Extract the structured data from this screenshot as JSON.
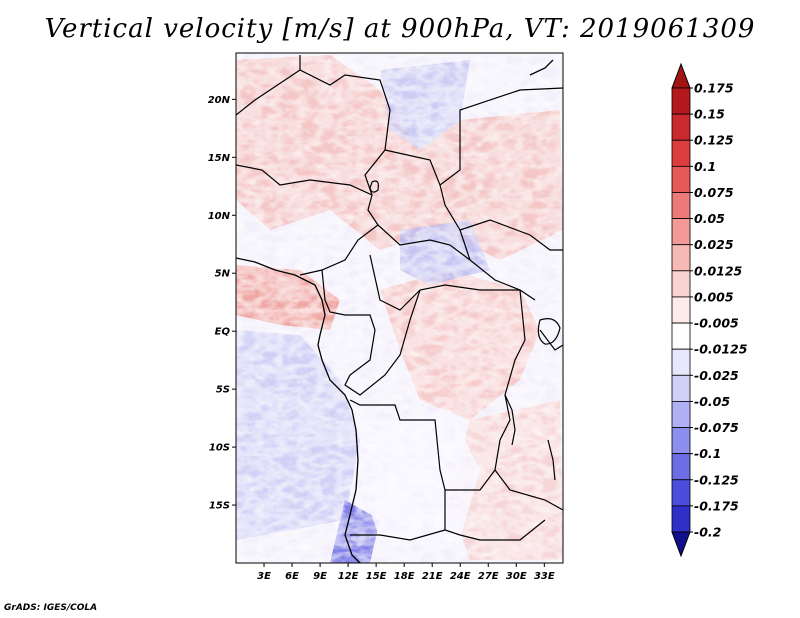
{
  "title": "Vertical velocity [m/s] at 900hPa, VT: 2019061309",
  "credit": "GrADS: IGES/COLA",
  "map": {
    "variable": "Vertical velocity",
    "units": "m/s",
    "level": "900hPa",
    "valid_time": "2019061309",
    "lon_range": [
      0,
      35
    ],
    "lat_range": [
      -20,
      24
    ],
    "lat_ticks": [
      {
        "value": 20,
        "label": "20N"
      },
      {
        "value": 15,
        "label": "15N"
      },
      {
        "value": 10,
        "label": "10N"
      },
      {
        "value": 5,
        "label": "5N"
      },
      {
        "value": 0,
        "label": "EQ"
      },
      {
        "value": -5,
        "label": "5S"
      },
      {
        "value": -10,
        "label": "10S"
      },
      {
        "value": -15,
        "label": "15S"
      }
    ],
    "lon_ticks": [
      {
        "value": 3,
        "label": "3E"
      },
      {
        "value": 6,
        "label": "6E"
      },
      {
        "value": 9,
        "label": "9E"
      },
      {
        "value": 12,
        "label": "12E"
      },
      {
        "value": 15,
        "label": "15E"
      },
      {
        "value": 18,
        "label": "18E"
      },
      {
        "value": 21,
        "label": "21E"
      },
      {
        "value": 24,
        "label": "24E"
      },
      {
        "value": 27,
        "label": "27E"
      },
      {
        "value": 30,
        "label": "30E"
      },
      {
        "value": 33,
        "label": "33E"
      }
    ]
  },
  "colorbar": {
    "levels": [
      {
        "label": "0.175",
        "color": "#b3181c"
      },
      {
        "label": "0.15",
        "color": "#c92a2e"
      },
      {
        "label": "0.125",
        "color": "#dc3e3e"
      },
      {
        "label": "0.1",
        "color": "#e65a58"
      },
      {
        "label": "0.075",
        "color": "#ec7a78"
      },
      {
        "label": "0.05",
        "color": "#f29a97"
      },
      {
        "label": "0.025",
        "color": "#f7b9b6"
      },
      {
        "label": "0.0125",
        "color": "#fad3d1"
      },
      {
        "label": "0.005",
        "color": "#fdebea"
      },
      {
        "label": "-0.005",
        "color": "#ffffff"
      },
      {
        "label": "-0.0125",
        "color": "#e8e8fc"
      },
      {
        "label": "-0.025",
        "color": "#cfcff8"
      },
      {
        "label": "-0.05",
        "color": "#b0b0f4"
      },
      {
        "label": "-0.075",
        "color": "#8e8eee"
      },
      {
        "label": "-0.1",
        "color": "#6d6de6"
      },
      {
        "label": "-0.125",
        "color": "#4d4ddb"
      },
      {
        "label": "-0.175",
        "color": "#3030c8"
      },
      {
        "label": "-0.2",
        "color": "#1c1caa"
      }
    ],
    "top_color": "#a01414",
    "bottom_color": "#10108c"
  }
}
